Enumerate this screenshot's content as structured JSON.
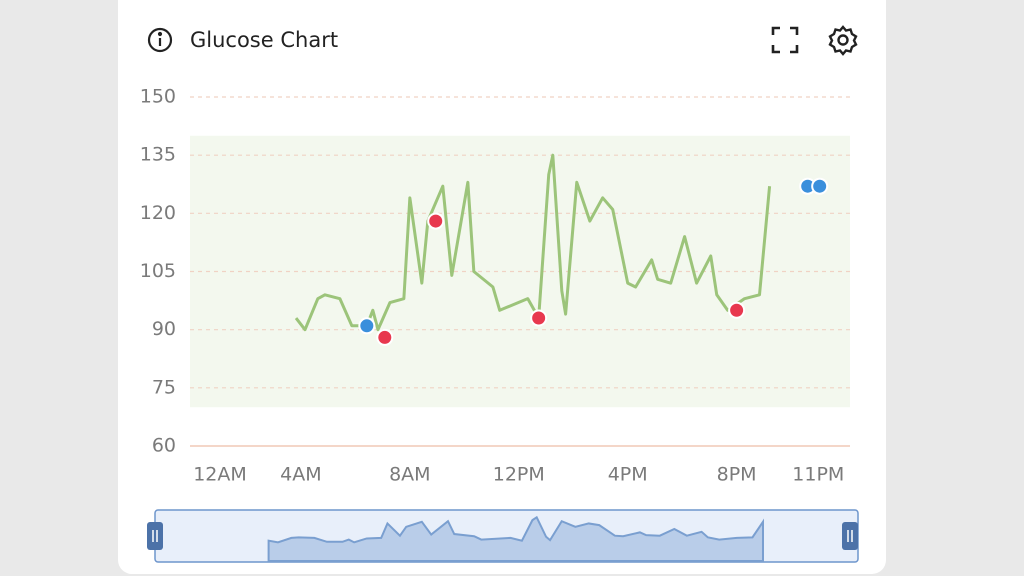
{
  "chart_data": {
    "type": "line",
    "title": "Glucose Chart",
    "xlim": [
      0,
      24.2
    ],
    "xticks": [
      {
        "value": 0,
        "label": "12AM"
      },
      {
        "value": 4,
        "label": "4AM"
      },
      {
        "value": 8,
        "label": "8AM"
      },
      {
        "value": 12,
        "label": "12PM"
      },
      {
        "value": 16,
        "label": "4PM"
      },
      {
        "value": 20,
        "label": "8PM"
      },
      {
        "value": 23,
        "label": "11PM"
      }
    ],
    "ylim": [
      60,
      150
    ],
    "yticks": [
      60,
      75,
      90,
      105,
      120,
      135,
      150
    ],
    "grid": true,
    "target_range": [
      70,
      140
    ],
    "series": [
      {
        "style": "line",
        "color": "#9cc47a",
        "x": [
          3.82,
          4.15,
          4.62,
          4.88,
          5.43,
          5.87,
          6.42,
          6.64,
          6.83,
          7.27,
          7.78,
          8.0,
          8.44,
          8.66,
          9.21,
          9.54,
          10.13,
          10.35,
          11.05,
          11.3,
          12.33,
          12.73,
          13.1,
          13.25,
          13.58,
          13.72,
          14.13,
          14.61,
          15.08,
          15.45,
          16.0,
          16.29,
          16.88,
          17.1,
          17.58,
          18.09,
          18.53,
          19.05,
          19.27,
          19.67,
          20.29,
          20.84,
          21.21
        ],
        "values": [
          93,
          90,
          98,
          99,
          98,
          91,
          91,
          95,
          90,
          97,
          98,
          124,
          102,
          118,
          127,
          104,
          128,
          105,
          101,
          95,
          98,
          93,
          130,
          135,
          100,
          94,
          128,
          118,
          124,
          121,
          102,
          101,
          108,
          103,
          102,
          114,
          102,
          109,
          99,
          95,
          98,
          99,
          127
        ]
      },
      {
        "style": "dots",
        "color": "#e8384f",
        "x": [
          7.08,
          8.95,
          12.73,
          20.0
        ],
        "values": [
          88,
          118,
          93,
          95
        ]
      },
      {
        "style": "dots",
        "color": "#3a8fdc",
        "x": [
          6.42,
          22.61,
          23.05
        ],
        "values": [
          91,
          127,
          127
        ]
      }
    ]
  }
}
